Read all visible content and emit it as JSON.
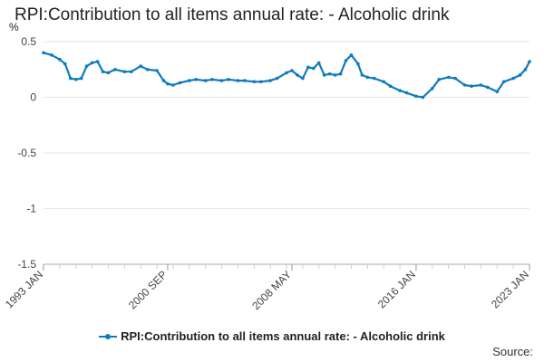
{
  "title": "RPI:Contribution to all items annual rate: - Alcoholic drink",
  "source_label": "Source:",
  "colors": {
    "series": "#0f7bbf",
    "grid": "#e6e6e6",
    "axis": "#aaaaaa",
    "text": "#222222"
  },
  "chart_data": {
    "type": "line",
    "title": "RPI:Contribution to all items annual rate: - Alcoholic drink",
    "xlabel": "",
    "ylabel": "%",
    "xlim": [
      "1993-01",
      "2023-01"
    ],
    "ylim": [
      -1.5,
      0.5
    ],
    "yticks": [
      0.5,
      0,
      -0.5,
      -1,
      -1.5
    ],
    "ytick_labels": [
      "0.5",
      "0",
      "-0.5",
      "-1",
      "-1.5"
    ],
    "xtick_labels": [
      {
        "date": "1993-01",
        "label": "1993 JAN"
      },
      {
        "date": "2000-09",
        "label": "2000 SEP"
      },
      {
        "date": "2008-05",
        "label": "2008 MAY"
      },
      {
        "date": "2016-01",
        "label": "2016 JAN"
      },
      {
        "date": "2023-01",
        "label": "2023 JAN"
      }
    ],
    "grid": true,
    "legend_position": "bottom",
    "series": [
      {
        "name": "RPI:Contribution to all items annual rate: - Alcoholic drink",
        "points": [
          [
            "1993-01",
            0.4
          ],
          [
            "1993-07",
            0.38
          ],
          [
            "1994-01",
            0.34
          ],
          [
            "1994-05",
            0.3
          ],
          [
            "1994-09",
            0.17
          ],
          [
            "1995-01",
            0.16
          ],
          [
            "1995-05",
            0.17
          ],
          [
            "1995-09",
            0.28
          ],
          [
            "1996-01",
            0.31
          ],
          [
            "1996-05",
            0.32
          ],
          [
            "1996-09",
            0.23
          ],
          [
            "1997-01",
            0.22
          ],
          [
            "1997-06",
            0.25
          ],
          [
            "1998-01",
            0.23
          ],
          [
            "1998-06",
            0.23
          ],
          [
            "1999-01",
            0.28
          ],
          [
            "1999-06",
            0.25
          ],
          [
            "2000-01",
            0.24
          ],
          [
            "2000-06",
            0.15
          ],
          [
            "2000-09",
            0.12
          ],
          [
            "2001-01",
            0.11
          ],
          [
            "2001-06",
            0.13
          ],
          [
            "2002-01",
            0.15
          ],
          [
            "2002-06",
            0.16
          ],
          [
            "2003-01",
            0.15
          ],
          [
            "2003-06",
            0.16
          ],
          [
            "2004-01",
            0.15
          ],
          [
            "2004-06",
            0.16
          ],
          [
            "2005-01",
            0.15
          ],
          [
            "2005-06",
            0.15
          ],
          [
            "2006-01",
            0.14
          ],
          [
            "2006-06",
            0.14
          ],
          [
            "2007-01",
            0.15
          ],
          [
            "2007-06",
            0.17
          ],
          [
            "2008-01",
            0.22
          ],
          [
            "2008-05",
            0.24
          ],
          [
            "2008-09",
            0.2
          ],
          [
            "2009-01",
            0.17
          ],
          [
            "2009-05",
            0.27
          ],
          [
            "2009-09",
            0.26
          ],
          [
            "2010-01",
            0.31
          ],
          [
            "2010-05",
            0.2
          ],
          [
            "2010-09",
            0.21
          ],
          [
            "2011-01",
            0.2
          ],
          [
            "2011-05",
            0.21
          ],
          [
            "2011-09",
            0.33
          ],
          [
            "2012-01",
            0.38
          ],
          [
            "2012-06",
            0.3
          ],
          [
            "2012-09",
            0.2
          ],
          [
            "2013-01",
            0.18
          ],
          [
            "2013-06",
            0.17
          ],
          [
            "2014-01",
            0.14
          ],
          [
            "2014-06",
            0.1
          ],
          [
            "2015-01",
            0.06
          ],
          [
            "2015-06",
            0.04
          ],
          [
            "2016-01",
            0.01
          ],
          [
            "2016-06",
            0.0
          ],
          [
            "2017-01",
            0.08
          ],
          [
            "2017-06",
            0.16
          ],
          [
            "2018-01",
            0.18
          ],
          [
            "2018-06",
            0.17
          ],
          [
            "2019-01",
            0.11
          ],
          [
            "2019-06",
            0.1
          ],
          [
            "2020-01",
            0.11
          ],
          [
            "2020-06",
            0.09
          ],
          [
            "2021-01",
            0.05
          ],
          [
            "2021-06",
            0.14
          ],
          [
            "2022-01",
            0.17
          ],
          [
            "2022-06",
            0.2
          ],
          [
            "2022-10",
            0.25
          ],
          [
            "2023-01",
            0.32
          ]
        ]
      }
    ]
  }
}
